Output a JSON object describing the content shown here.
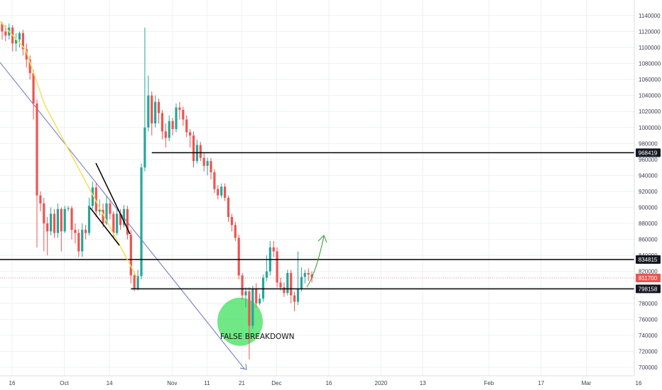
{
  "chart_data": {
    "type": "candlestick",
    "price_axis": {
      "min": 690000,
      "max": 1150000,
      "ticks": [
        700000,
        720000,
        740000,
        760000,
        780000,
        800000,
        820000,
        840000,
        860000,
        880000,
        900000,
        920000,
        940000,
        960000,
        980000,
        1000000,
        1020000,
        1040000,
        1060000,
        1080000,
        1100000,
        1120000,
        1140000
      ]
    },
    "time_axis": {
      "labels": [
        {
          "text": "16",
          "day": 0
        },
        {
          "text": "Oct",
          "day": 15
        },
        {
          "text": "14",
          "day": 28
        },
        {
          "text": "Nov",
          "day": 46
        },
        {
          "text": "11",
          "day": 56
        },
        {
          "text": "21",
          "day": 66
        },
        {
          "text": "Dec",
          "day": 76
        },
        {
          "text": "16",
          "day": 91
        },
        {
          "text": "2020",
          "day": 106
        },
        {
          "text": "13",
          "day": 118
        },
        {
          "text": "Feb",
          "day": 137
        },
        {
          "text": "17",
          "day": 152
        },
        {
          "text": "Mar",
          "day": 165
        },
        {
          "text": "16",
          "day": 180
        }
      ]
    },
    "candles": [
      [
        1130000,
        1120000,
        1132000,
        1110000
      ],
      [
        1120000,
        1115000,
        1128000,
        1108000
      ],
      [
        1115000,
        1125000,
        1130000,
        1110000
      ],
      [
        1125000,
        1105000,
        1128000,
        1095000
      ],
      [
        1105000,
        1110000,
        1118000,
        1095000
      ],
      [
        1110000,
        1118000,
        1120000,
        1100000
      ],
      [
        1118000,
        1098000,
        1122000,
        1090000
      ],
      [
        1098000,
        1085000,
        1105000,
        1075000
      ],
      [
        1085000,
        1068000,
        1090000,
        1060000
      ],
      [
        1068000,
        1030000,
        1072000,
        1010000
      ],
      [
        1030000,
        915000,
        1035000,
        850000
      ],
      [
        915000,
        905000,
        920000,
        895000
      ],
      [
        905000,
        880000,
        912000,
        845000
      ],
      [
        880000,
        870000,
        888000,
        840000
      ],
      [
        870000,
        892000,
        900000,
        865000
      ],
      [
        892000,
        868000,
        898000,
        862000
      ],
      [
        868000,
        898000,
        905000,
        862000
      ],
      [
        898000,
        870000,
        900000,
        845000
      ],
      [
        870000,
        898000,
        902000,
        868000
      ],
      [
        898000,
        899000,
        902000,
        895000
      ],
      [
        899000,
        872000,
        902000,
        860000
      ],
      [
        872000,
        868000,
        880000,
        855000
      ],
      [
        868000,
        845000,
        873000,
        838000
      ],
      [
        845000,
        872000,
        880000,
        838000
      ],
      [
        872000,
        868000,
        878000,
        860000
      ],
      [
        868000,
        902000,
        912000,
        865000
      ],
      [
        902000,
        925000,
        932000,
        898000
      ],
      [
        925000,
        895000,
        930000,
        888000
      ],
      [
        895000,
        897000,
        910000,
        890000
      ],
      [
        897000,
        880000,
        905000,
        875000
      ],
      [
        880000,
        905000,
        915000,
        878000
      ],
      [
        905000,
        892000,
        910000,
        885000
      ],
      [
        892000,
        868000,
        895000,
        862000
      ],
      [
        868000,
        892000,
        898000,
        865000
      ],
      [
        892000,
        878000,
        898000,
        872000
      ],
      [
        878000,
        898000,
        903000,
        875000
      ],
      [
        898000,
        866000,
        902000,
        860000
      ],
      [
        866000,
        815000,
        872000,
        805000
      ],
      [
        815000,
        798000,
        820000,
        795000
      ],
      [
        798000,
        814000,
        822000,
        796000
      ],
      [
        814000,
        950000,
        955000,
        810000
      ],
      [
        950000,
        1000000,
        1125000,
        945000
      ],
      [
        1000000,
        1040000,
        1065000,
        995000
      ],
      [
        1040000,
        1005000,
        1045000,
        990000
      ],
      [
        1005000,
        1032000,
        1040000,
        1000000
      ],
      [
        1032000,
        1018000,
        1036000,
        1005000
      ],
      [
        1018000,
        995000,
        1022000,
        985000
      ],
      [
        995000,
        987000,
        1005000,
        975000
      ],
      [
        987000,
        1008000,
        1015000,
        983000
      ],
      [
        1008000,
        998000,
        1012000,
        990000
      ],
      [
        998000,
        1025000,
        1030000,
        994000
      ],
      [
        1025000,
        1022000,
        1032000,
        1010000
      ],
      [
        1022000,
        1010000,
        1026000,
        1002000
      ],
      [
        1010000,
        994000,
        1015000,
        988000
      ],
      [
        994000,
        990000,
        998000,
        975000
      ],
      [
        990000,
        958000,
        995000,
        950000
      ],
      [
        958000,
        978000,
        985000,
        955000
      ],
      [
        978000,
        962000,
        982000,
        958000
      ],
      [
        962000,
        952000,
        968000,
        945000
      ],
      [
        952000,
        958000,
        962000,
        940000
      ],
      [
        958000,
        944000,
        962000,
        935000
      ],
      [
        944000,
        923000,
        948000,
        918000
      ],
      [
        923000,
        915000,
        928000,
        910000
      ],
      [
        915000,
        926000,
        930000,
        912000
      ],
      [
        926000,
        912000,
        930000,
        908000
      ],
      [
        912000,
        888000,
        915000,
        882000
      ],
      [
        888000,
        878000,
        892000,
        870000
      ],
      [
        878000,
        862000,
        882000,
        858000
      ],
      [
        862000,
        815000,
        866000,
        810000
      ],
      [
        815000,
        790000,
        818000,
        785000
      ],
      [
        790000,
        795000,
        800000,
        775000
      ],
      [
        795000,
        752000,
        800000,
        710000
      ],
      [
        752000,
        798000,
        802000,
        748000
      ],
      [
        798000,
        780000,
        805000,
        775000
      ],
      [
        780000,
        786000,
        792000,
        778000
      ],
      [
        786000,
        812000,
        816000,
        782000
      ],
      [
        812000,
        820000,
        840000,
        808000
      ],
      [
        820000,
        850000,
        858000,
        815000
      ],
      [
        850000,
        845000,
        858000,
        838000
      ],
      [
        845000,
        806000,
        850000,
        800000
      ],
      [
        806000,
        800000,
        812000,
        796000
      ],
      [
        800000,
        793000,
        806000,
        788000
      ],
      [
        793000,
        818000,
        822000,
        790000
      ],
      [
        818000,
        790000,
        822000,
        780000
      ],
      [
        790000,
        782000,
        795000,
        770000
      ],
      [
        782000,
        798000,
        845000,
        778000
      ],
      [
        798000,
        813000,
        825000,
        795000
      ],
      [
        813000,
        818000,
        822000,
        805000
      ],
      [
        818000,
        816000,
        824000,
        808000
      ],
      [
        816000,
        812000,
        820000,
        806000
      ]
    ],
    "levels": [
      {
        "value": 968419,
        "label": "968419",
        "start_day": 43
      },
      {
        "value": 834815,
        "label": "834815",
        "start_day": -2
      },
      {
        "value": 798158,
        "label": "798158",
        "start_day": 37
      }
    ],
    "current_price": {
      "value": 811700,
      "label": "811700"
    },
    "annotation": "FALSE BREAKDOWN",
    "colors": {
      "up": "#26a69a",
      "down": "#ef5350",
      "level_line": "#000000",
      "level_label_bg": "#131722",
      "current_label_bg": "#ef5350",
      "trend_yellow": "#f2e05a",
      "trend_blue": "#6b6fbf",
      "wedge_black": "#000000",
      "arrow_green": "#2e9a2e",
      "highlight_green": "#3fe05c",
      "grid": "#eef0f4",
      "axis_text": "#3a3e4a"
    }
  }
}
